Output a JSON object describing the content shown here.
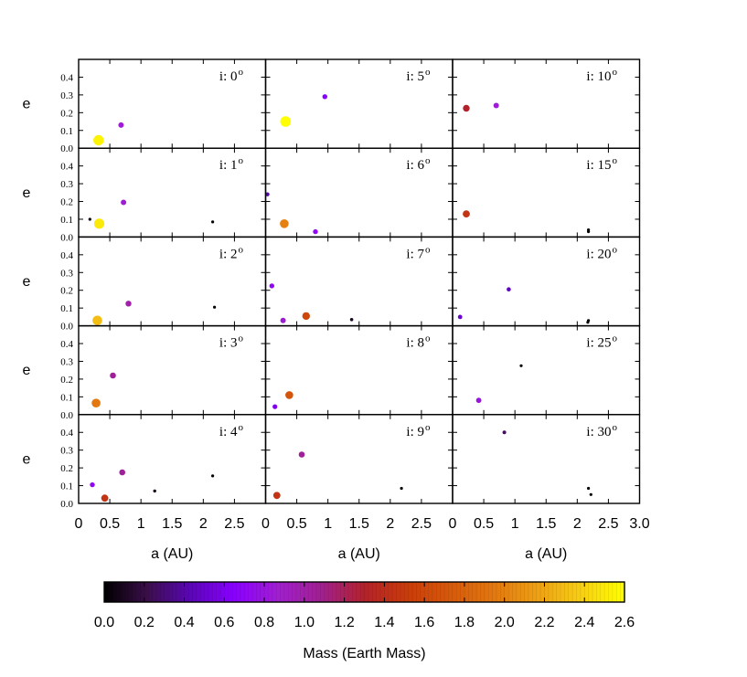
{
  "chart_data": {
    "type": "scatter",
    "grid_rows": 5,
    "grid_cols": 3,
    "xlim": [
      0,
      3.0
    ],
    "ylim": [
      0,
      0.5
    ],
    "x_ticks": [
      0,
      0.5,
      1,
      1.5,
      2,
      2.5
    ],
    "x_tick_labels": [
      "0",
      "0.5",
      "1",
      "1.5",
      "2",
      "2.5"
    ],
    "x_ticks_last_col": [
      0,
      0.5,
      1,
      1.5,
      2,
      2.5,
      3.0
    ],
    "x_tick_labels_last_col": [
      "0",
      "0.5",
      "1",
      "1.5",
      "2",
      "2.5",
      "3.0"
    ],
    "y_ticks": [
      0,
      0.1,
      0.2,
      0.3,
      0.4
    ],
    "y_tick_labels": [
      "0.0",
      "0.1",
      "0.2",
      "0.3",
      "0.4"
    ],
    "xlabel": "a (AU)",
    "ylabel": "e",
    "colorbar": {
      "label": "Mass (Earth Mass)",
      "min": 0.0,
      "max": 2.6,
      "ticks": [
        "0.0",
        "0.2",
        "0.4",
        "0.6",
        "0.8",
        "1.0",
        "1.2",
        "1.4",
        "1.6",
        "1.8",
        "2.0",
        "2.2",
        "2.4",
        "2.6"
      ],
      "palette": [
        "#000000",
        "#3b0f4a",
        "#5b06b8",
        "#8a00ff",
        "#a01fd0",
        "#a0208f",
        "#b2222a",
        "#c93c0a",
        "#d65a0c",
        "#e2780f",
        "#eea014",
        "#f7cf14",
        "#ffff00"
      ]
    },
    "panels": [
      {
        "label": "i: 0",
        "sup": "o",
        "points": [
          {
            "a": 0.32,
            "e": 0.045,
            "m": 2.55
          },
          {
            "a": 0.68,
            "e": 0.13,
            "m": 0.85
          }
        ]
      },
      {
        "label": "i: 5",
        "sup": "o",
        "points": [
          {
            "a": 0.32,
            "e": 0.15,
            "m": 2.6
          },
          {
            "a": 0.95,
            "e": 0.29,
            "m": 0.65
          }
        ]
      },
      {
        "label": "i: 10",
        "sup": "o",
        "points": [
          {
            "a": 0.22,
            "e": 0.225,
            "m": 1.3
          },
          {
            "a": 0.7,
            "e": 0.24,
            "m": 0.85
          }
        ]
      },
      {
        "label": "i: 1",
        "sup": "o",
        "points": [
          {
            "a": 0.18,
            "e": 0.1,
            "m": 0.02
          },
          {
            "a": 0.33,
            "e": 0.075,
            "m": 2.5
          },
          {
            "a": 0.72,
            "e": 0.195,
            "m": 0.85
          },
          {
            "a": 2.15,
            "e": 0.085,
            "m": 0.01
          }
        ]
      },
      {
        "label": "i: 6",
        "sup": "o",
        "points": [
          {
            "a": 0.03,
            "e": 0.24,
            "m": 0.4
          },
          {
            "a": 0.3,
            "e": 0.075,
            "m": 2.0
          },
          {
            "a": 0.8,
            "e": 0.03,
            "m": 0.7
          }
        ]
      },
      {
        "label": "i: 15",
        "sup": "o",
        "points": [
          {
            "a": 0.22,
            "e": 0.13,
            "m": 1.45
          },
          {
            "a": 2.18,
            "e": 0.04,
            "m": 0.01
          },
          {
            "a": 2.18,
            "e": 0.03,
            "m": 0.01
          }
        ]
      },
      {
        "label": "i: 2",
        "sup": "o",
        "points": [
          {
            "a": 0.3,
            "e": 0.03,
            "m": 2.3
          },
          {
            "a": 0.8,
            "e": 0.125,
            "m": 1.0
          },
          {
            "a": 2.18,
            "e": 0.105,
            "m": 0.01
          }
        ]
      },
      {
        "label": "i: 7",
        "sup": "o",
        "points": [
          {
            "a": 0.1,
            "e": 0.225,
            "m": 0.7
          },
          {
            "a": 0.28,
            "e": 0.03,
            "m": 0.85
          },
          {
            "a": 0.65,
            "e": 0.055,
            "m": 1.6
          },
          {
            "a": 1.38,
            "e": 0.035,
            "m": 0.1
          }
        ]
      },
      {
        "label": "i: 20",
        "sup": "o",
        "points": [
          {
            "a": 0.12,
            "e": 0.05,
            "m": 0.5
          },
          {
            "a": 0.9,
            "e": 0.205,
            "m": 0.45
          },
          {
            "a": 2.18,
            "e": 0.03,
            "m": 0.01
          },
          {
            "a": 2.17,
            "e": 0.02,
            "m": 0.01
          }
        ]
      },
      {
        "label": "i: 3",
        "sup": "o",
        "points": [
          {
            "a": 0.28,
            "e": 0.065,
            "m": 1.95
          },
          {
            "a": 0.55,
            "e": 0.22,
            "m": 1.05
          }
        ]
      },
      {
        "label": "i: 8",
        "sup": "o",
        "points": [
          {
            "a": 0.15,
            "e": 0.045,
            "m": 0.6
          },
          {
            "a": 0.38,
            "e": 0.11,
            "m": 1.7
          }
        ]
      },
      {
        "label": "i: 25",
        "sup": "o",
        "points": [
          {
            "a": 0.42,
            "e": 0.08,
            "m": 0.8
          },
          {
            "a": 1.1,
            "e": 0.275,
            "m": 0.01
          }
        ]
      },
      {
        "label": "i: 4",
        "sup": "o",
        "points": [
          {
            "a": 0.22,
            "e": 0.105,
            "m": 0.7
          },
          {
            "a": 0.42,
            "e": 0.03,
            "m": 1.45
          },
          {
            "a": 0.7,
            "e": 0.175,
            "m": 1.05
          },
          {
            "a": 1.22,
            "e": 0.07,
            "m": 0.05
          },
          {
            "a": 2.15,
            "e": 0.155,
            "m": 0.01
          }
        ]
      },
      {
        "label": "i: 9",
        "sup": "o",
        "points": [
          {
            "a": 0.18,
            "e": 0.045,
            "m": 1.45
          },
          {
            "a": 0.58,
            "e": 0.275,
            "m": 1.05
          },
          {
            "a": 2.18,
            "e": 0.085,
            "m": 0.01
          }
        ]
      },
      {
        "label": "i: 30",
        "sup": "o",
        "points": [
          {
            "a": 0.83,
            "e": 0.4,
            "m": 0.25
          },
          {
            "a": 2.18,
            "e": 0.085,
            "m": 0.01
          },
          {
            "a": 2.22,
            "e": 0.05,
            "m": 0.01
          }
        ]
      }
    ]
  }
}
